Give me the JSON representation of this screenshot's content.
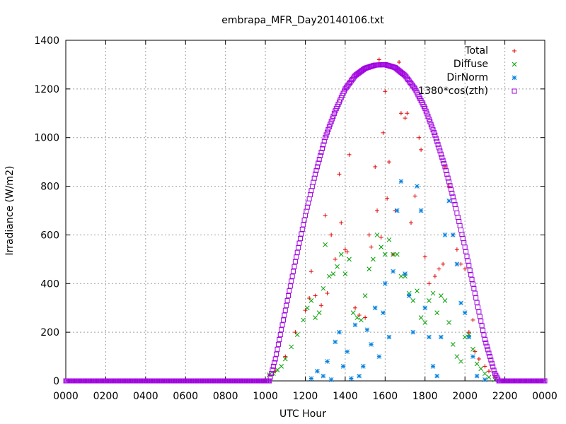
{
  "chart_data": {
    "type": "scatter",
    "title": "embrapa_MFR_Day20140106.txt",
    "xlabel": "UTC Hour",
    "ylabel": "Irradiance (W/m2)",
    "xlim": [
      0,
      24
    ],
    "ylim": [
      0,
      1400
    ],
    "x_ticks": [
      {
        "value": 0,
        "label": "0000"
      },
      {
        "value": 2,
        "label": "0200"
      },
      {
        "value": 4,
        "label": "0400"
      },
      {
        "value": 6,
        "label": "0600"
      },
      {
        "value": 8,
        "label": "0800"
      },
      {
        "value": 10,
        "label": "1000"
      },
      {
        "value": 12,
        "label": "1200"
      },
      {
        "value": 14,
        "label": "1400"
      },
      {
        "value": 16,
        "label": "1600"
      },
      {
        "value": 18,
        "label": "1800"
      },
      {
        "value": 20,
        "label": "2000"
      },
      {
        "value": 22,
        "label": "2200"
      },
      {
        "value": 24,
        "label": "0000"
      }
    ],
    "y_ticks": [
      0,
      200,
      400,
      600,
      800,
      1000,
      1200,
      1400
    ],
    "grid": true,
    "legend_position": "top-right",
    "series": [
      {
        "name": "Total",
        "marker": "+",
        "color": "#e00000",
        "points": [
          [
            10.0,
            0
          ],
          [
            10.2,
            25
          ],
          [
            10.5,
            40
          ],
          [
            11.0,
            100
          ],
          [
            11.5,
            200
          ],
          [
            12.0,
            290
          ],
          [
            12.2,
            340
          ],
          [
            12.3,
            450
          ],
          [
            12.5,
            350
          ],
          [
            12.8,
            310
          ],
          [
            13.0,
            680
          ],
          [
            13.1,
            360
          ],
          [
            13.3,
            600
          ],
          [
            13.5,
            500
          ],
          [
            13.7,
            850
          ],
          [
            13.8,
            650
          ],
          [
            14.0,
            540
          ],
          [
            14.1,
            530
          ],
          [
            14.2,
            930
          ],
          [
            14.5,
            300
          ],
          [
            14.7,
            270
          ],
          [
            15.0,
            260
          ],
          [
            15.2,
            600
          ],
          [
            15.3,
            550
          ],
          [
            15.5,
            880
          ],
          [
            15.6,
            700
          ],
          [
            15.7,
            1320
          ],
          [
            15.8,
            590
          ],
          [
            15.9,
            1020
          ],
          [
            16.0,
            1190
          ],
          [
            16.1,
            750
          ],
          [
            16.2,
            900
          ],
          [
            16.4,
            520
          ],
          [
            16.5,
            700
          ],
          [
            16.7,
            1310
          ],
          [
            16.8,
            1100
          ],
          [
            17.0,
            1080
          ],
          [
            17.1,
            1100
          ],
          [
            17.3,
            650
          ],
          [
            17.5,
            760
          ],
          [
            17.7,
            1000
          ],
          [
            17.8,
            950
          ],
          [
            18.0,
            510
          ],
          [
            18.2,
            400
          ],
          [
            18.5,
            430
          ],
          [
            18.7,
            460
          ],
          [
            18.9,
            480
          ],
          [
            19.0,
            880
          ],
          [
            19.2,
            800
          ],
          [
            19.4,
            600
          ],
          [
            19.6,
            540
          ],
          [
            19.8,
            480
          ],
          [
            20.0,
            460
          ],
          [
            20.2,
            200
          ],
          [
            20.4,
            250
          ],
          [
            20.5,
            120
          ],
          [
            20.7,
            90
          ],
          [
            21.0,
            60
          ],
          [
            21.2,
            40
          ],
          [
            21.5,
            20
          ],
          [
            22.0,
            0
          ]
        ]
      },
      {
        "name": "Diffuse",
        "marker": "x",
        "color": "#00a000",
        "points": [
          [
            10.0,
            0
          ],
          [
            10.2,
            25
          ],
          [
            10.4,
            30
          ],
          [
            10.6,
            45
          ],
          [
            10.8,
            60
          ],
          [
            11.0,
            90
          ],
          [
            11.3,
            140
          ],
          [
            11.6,
            190
          ],
          [
            11.9,
            250
          ],
          [
            12.1,
            300
          ],
          [
            12.3,
            330
          ],
          [
            12.5,
            260
          ],
          [
            12.7,
            280
          ],
          [
            12.9,
            380
          ],
          [
            13.0,
            560
          ],
          [
            13.2,
            430
          ],
          [
            13.4,
            440
          ],
          [
            13.6,
            470
          ],
          [
            13.8,
            520
          ],
          [
            14.0,
            440
          ],
          [
            14.2,
            500
          ],
          [
            14.4,
            280
          ],
          [
            14.6,
            260
          ],
          [
            14.8,
            250
          ],
          [
            15.0,
            350
          ],
          [
            15.2,
            460
          ],
          [
            15.4,
            500
          ],
          [
            15.6,
            600
          ],
          [
            15.8,
            550
          ],
          [
            16.0,
            520
          ],
          [
            16.2,
            580
          ],
          [
            16.4,
            520
          ],
          [
            16.6,
            520
          ],
          [
            16.8,
            430
          ],
          [
            17.0,
            430
          ],
          [
            17.2,
            360
          ],
          [
            17.4,
            330
          ],
          [
            17.6,
            370
          ],
          [
            17.8,
            260
          ],
          [
            18.0,
            240
          ],
          [
            18.2,
            330
          ],
          [
            18.4,
            360
          ],
          [
            18.6,
            280
          ],
          [
            18.8,
            350
          ],
          [
            19.0,
            330
          ],
          [
            19.2,
            240
          ],
          [
            19.4,
            150
          ],
          [
            19.6,
            100
          ],
          [
            19.8,
            80
          ],
          [
            20.0,
            180
          ],
          [
            20.2,
            190
          ],
          [
            20.4,
            130
          ],
          [
            20.6,
            70
          ],
          [
            20.8,
            50
          ],
          [
            21.0,
            30
          ],
          [
            21.2,
            15
          ],
          [
            21.5,
            5
          ],
          [
            22.0,
            0
          ]
        ]
      },
      {
        "name": "DirNorm",
        "marker": "*",
        "color": "#0080e0",
        "points": [
          [
            12.3,
            10
          ],
          [
            12.6,
            40
          ],
          [
            12.9,
            20
          ],
          [
            13.1,
            80
          ],
          [
            13.3,
            5
          ],
          [
            13.5,
            160
          ],
          [
            13.7,
            200
          ],
          [
            13.9,
            60
          ],
          [
            14.1,
            120
          ],
          [
            14.3,
            10
          ],
          [
            14.5,
            230
          ],
          [
            14.7,
            20
          ],
          [
            14.9,
            60
          ],
          [
            15.1,
            210
          ],
          [
            15.3,
            150
          ],
          [
            15.5,
            300
          ],
          [
            15.7,
            100
          ],
          [
            15.9,
            280
          ],
          [
            16.0,
            400
          ],
          [
            16.2,
            180
          ],
          [
            16.4,
            450
          ],
          [
            16.6,
            700
          ],
          [
            16.8,
            820
          ],
          [
            17.0,
            440
          ],
          [
            17.2,
            350
          ],
          [
            17.4,
            200
          ],
          [
            17.6,
            800
          ],
          [
            17.8,
            700
          ],
          [
            18.0,
            300
          ],
          [
            18.2,
            180
          ],
          [
            18.4,
            60
          ],
          [
            18.6,
            20
          ],
          [
            18.8,
            180
          ],
          [
            19.0,
            600
          ],
          [
            19.2,
            740
          ],
          [
            19.4,
            600
          ],
          [
            19.6,
            480
          ],
          [
            19.8,
            320
          ],
          [
            20.0,
            280
          ],
          [
            20.2,
            180
          ],
          [
            20.4,
            100
          ],
          [
            20.6,
            20
          ],
          [
            21.0,
            5
          ]
        ]
      },
      {
        "name": "1380*cos(zth)",
        "marker": "square",
        "color": "#a000e0",
        "points": [
          [
            0,
            0
          ],
          [
            10.2,
            0
          ],
          [
            10.5,
            90
          ],
          [
            11.0,
            290
          ],
          [
            11.5,
            490
          ],
          [
            12.0,
            680
          ],
          [
            12.5,
            850
          ],
          [
            13.0,
            1000
          ],
          [
            13.5,
            1110
          ],
          [
            14.0,
            1200
          ],
          [
            14.5,
            1255
          ],
          [
            15.0,
            1285
          ],
          [
            15.5,
            1298
          ],
          [
            16.0,
            1300
          ],
          [
            16.5,
            1288
          ],
          [
            17.0,
            1255
          ],
          [
            17.5,
            1200
          ],
          [
            18.0,
            1120
          ],
          [
            18.5,
            1010
          ],
          [
            19.0,
            880
          ],
          [
            19.5,
            725
          ],
          [
            20.0,
            550
          ],
          [
            20.5,
            360
          ],
          [
            21.0,
            170
          ],
          [
            21.5,
            30
          ],
          [
            21.7,
            0
          ],
          [
            24,
            0
          ]
        ]
      }
    ]
  }
}
